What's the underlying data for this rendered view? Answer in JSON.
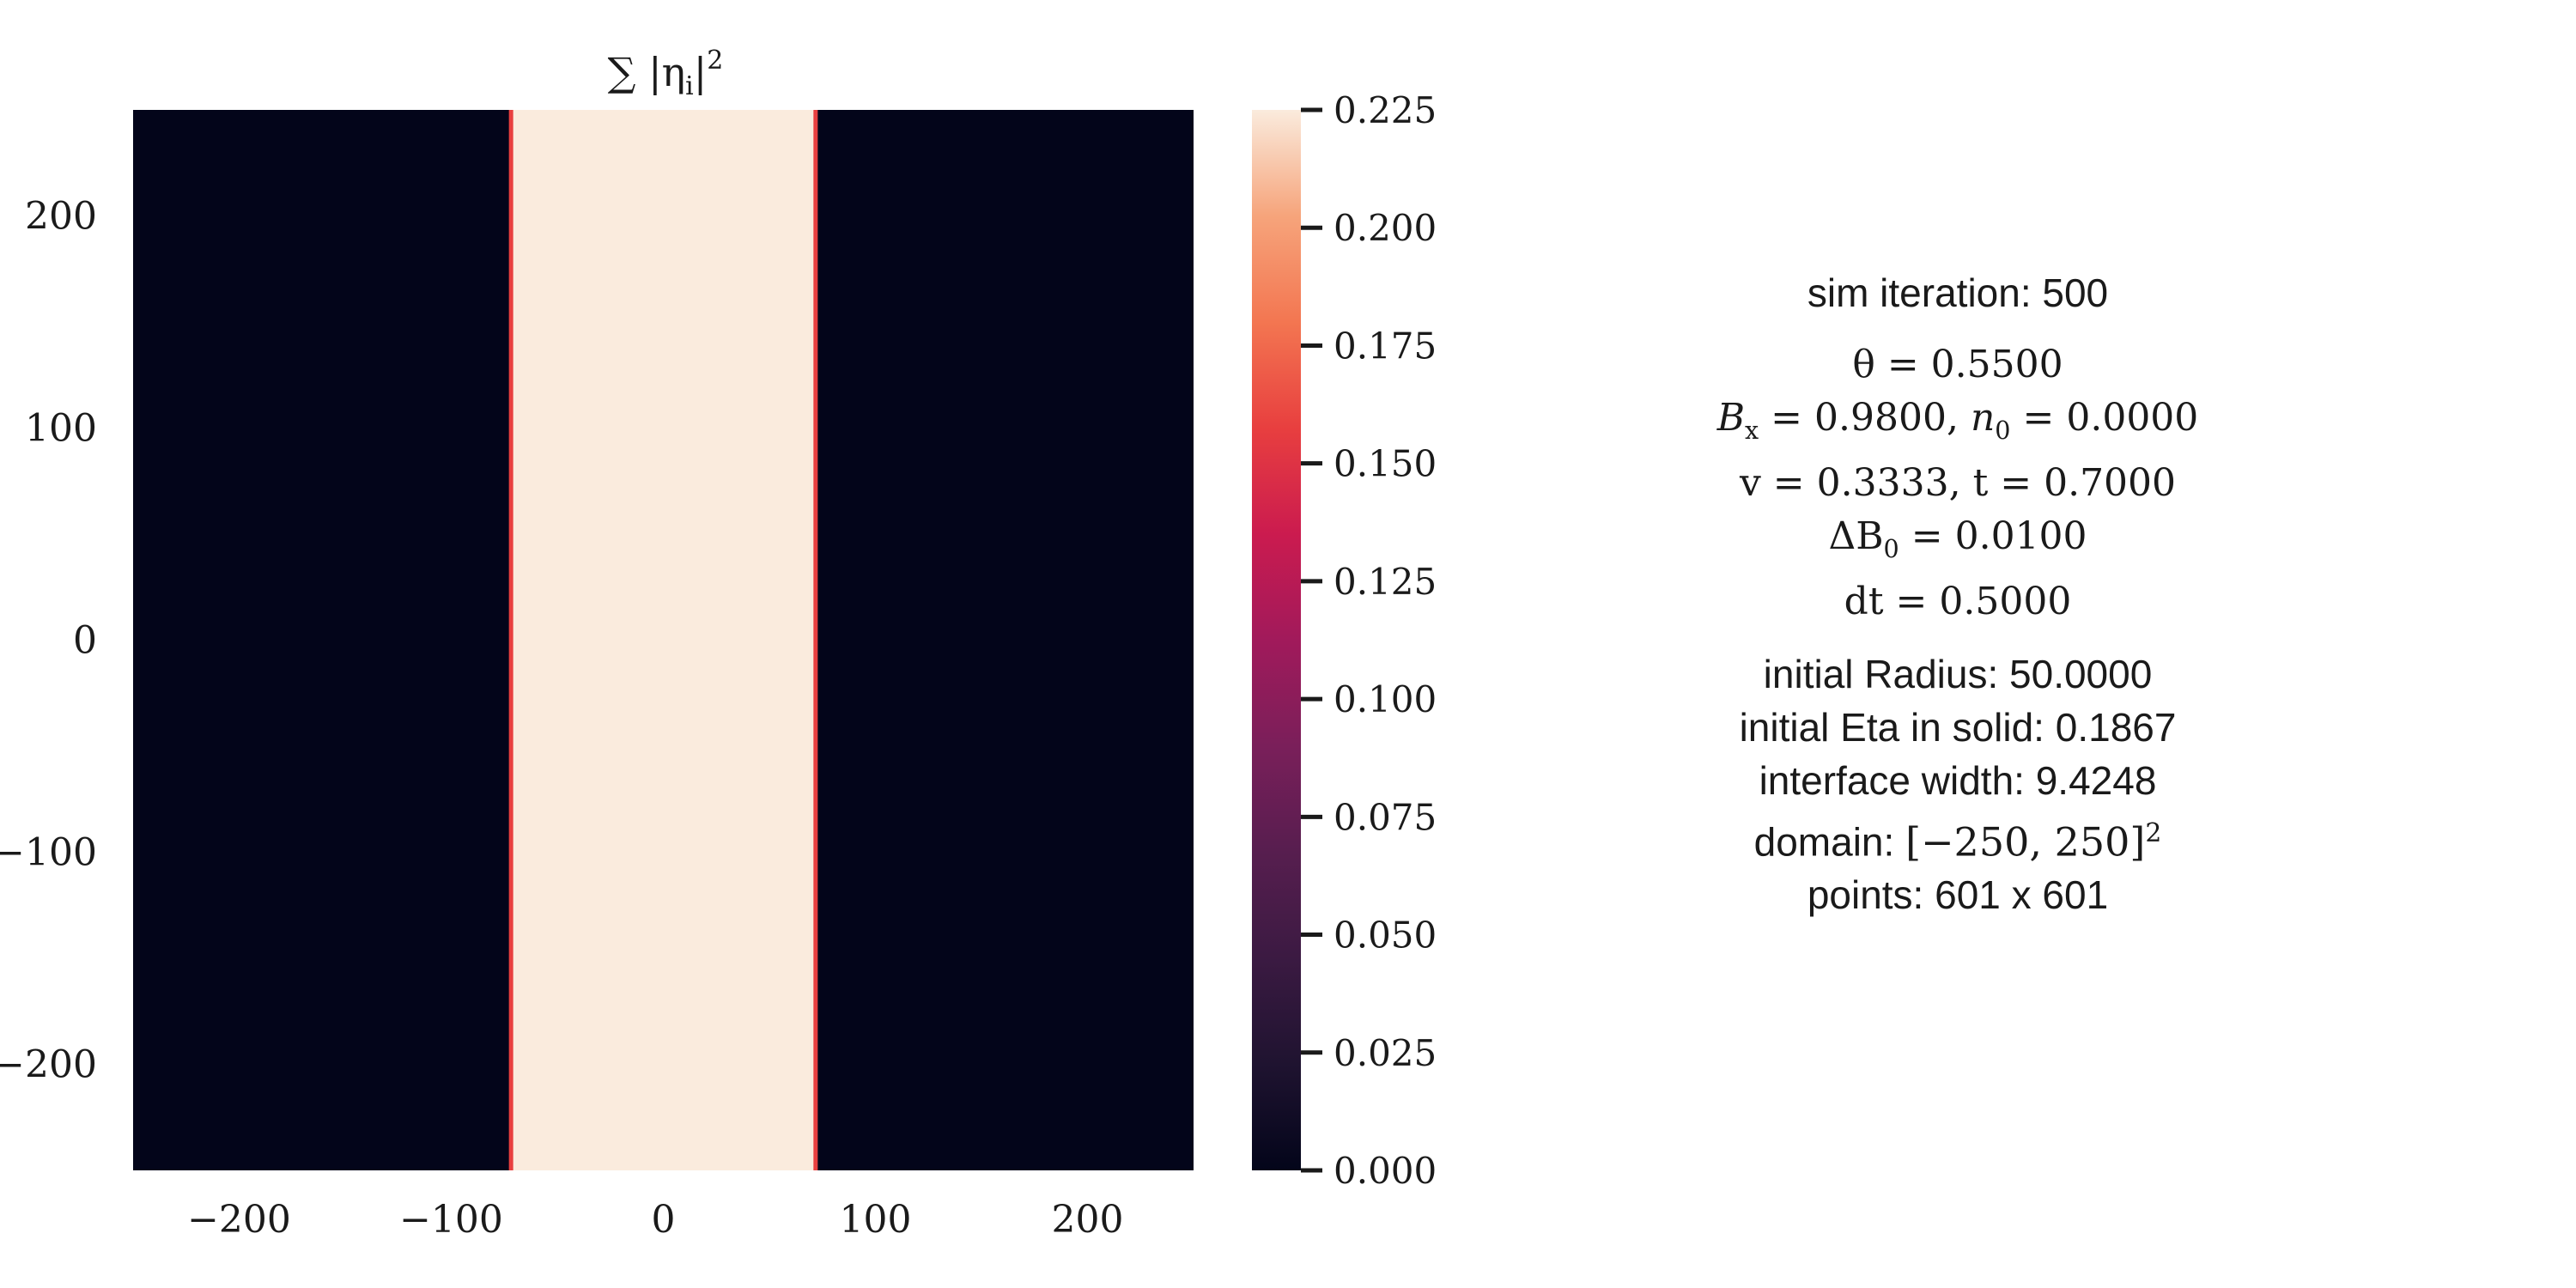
{
  "chart_data": {
    "type": "heatmap",
    "title": "∑ |η",
    "title_sub": "i",
    "title_sup": "2",
    "x_range": [
      -250,
      250
    ],
    "y_range": [
      -250,
      250
    ],
    "x_ticks": [
      -200,
      -100,
      0,
      100,
      200
    ],
    "y_ticks": [
      -200,
      -100,
      0,
      100,
      200
    ],
    "x_tick_labels": [
      "−200",
      "−100",
      "0",
      "100",
      "200"
    ],
    "y_tick_labels": [
      "−200",
      "−100",
      "0",
      "100",
      "200"
    ],
    "band": {
      "x_start": -72,
      "x_end": 72,
      "value_inside": 0.2225,
      "value_outside": 0.0
    },
    "colorbar": {
      "range": [
        0.0,
        0.225
      ],
      "ticks": [
        0.0,
        0.025,
        0.05,
        0.075,
        0.1,
        0.125,
        0.15,
        0.175,
        0.2,
        0.225
      ],
      "tick_labels": [
        "0.000",
        "0.025",
        "0.050",
        "0.075",
        "0.100",
        "0.125",
        "0.150",
        "0.175",
        "0.200",
        "0.225"
      ],
      "colormap": "rocket",
      "low_color": "#03051a",
      "high_color": "#faebdd"
    },
    "grid": false,
    "legend": "none"
  },
  "info": {
    "iteration": "sim iteration: 500",
    "theta": "θ = 0.5500",
    "bx_n0": {
      "b": "B",
      "b_sub": "x",
      "b_val": " = 0.9800, ",
      "n": "n",
      "n_sub": "0",
      "n_val": " = 0.0000"
    },
    "v_t": "v = 0.3333, t = 0.7000",
    "delta_b0": {
      "pre": "ΔB",
      "sub": "0",
      "val": " = 0.0100"
    },
    "dt": "dt = 0.5000",
    "radius": "initial Radius: 50.0000",
    "eta_solid": "initial Eta in solid: 0.1867",
    "interface_width": "interface width: 9.4248",
    "domain": {
      "label": "domain: ",
      "value": "[−250, 250]",
      "sup": "2"
    },
    "points": "points: 601 x 601"
  }
}
